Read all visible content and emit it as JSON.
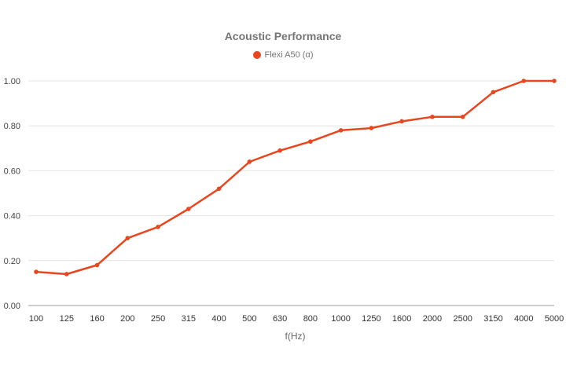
{
  "chart_data": {
    "type": "line",
    "title": "Acoustic Performance",
    "xlabel": "f(Hz)",
    "ylabel": "",
    "ylim": [
      0,
      1
    ],
    "yticks": [
      "0.00",
      "0.20",
      "0.40",
      "0.60",
      "0.80",
      "1.00"
    ],
    "categories": [
      "100",
      "125",
      "160",
      "200",
      "250",
      "315",
      "400",
      "500",
      "630",
      "800",
      "1000",
      "1250",
      "1600",
      "2000",
      "2500",
      "3150",
      "4000",
      "5000"
    ],
    "series": [
      {
        "name": "Flexi A50 (α)",
        "color": "#e8461e",
        "values": [
          0.15,
          0.14,
          0.18,
          0.3,
          0.35,
          0.43,
          0.52,
          0.64,
          0.69,
          0.73,
          0.78,
          0.79,
          0.82,
          0.84,
          0.84,
          0.95,
          1.0,
          1.0
        ]
      }
    ],
    "grid": true,
    "legend_position": "top"
  }
}
